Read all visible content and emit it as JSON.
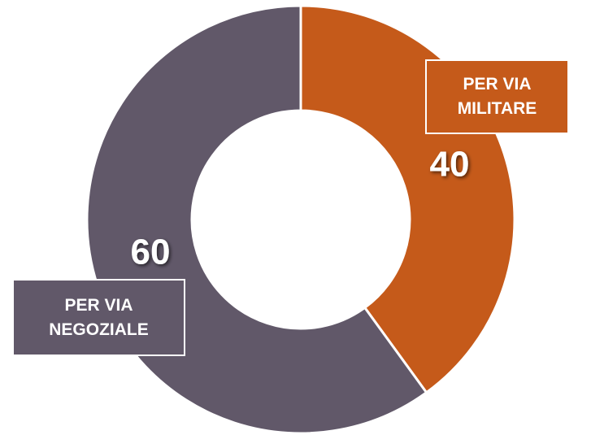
{
  "chart_data": {
    "type": "donut",
    "categories": [
      "PER VIA MILITARE",
      "PER VIA NEGOZIALE"
    ],
    "values": [
      40,
      60
    ],
    "colors": [
      "#c55a1a",
      "#615869"
    ]
  }
}
